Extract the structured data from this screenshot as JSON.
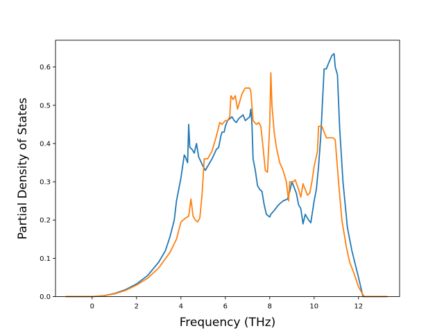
{
  "chart_data": {
    "type": "line",
    "title": "",
    "xlabel": "Frequency (THz)",
    "ylabel": "Partial Density of States",
    "xlim": [
      -1.65,
      13.85
    ],
    "ylim": [
      0.0,
      0.67
    ],
    "xticks": [
      0,
      2,
      4,
      6,
      8,
      10,
      12
    ],
    "xtick_labels": [
      "0",
      "2",
      "4",
      "6",
      "8",
      "10",
      "12"
    ],
    "yticks": [
      0.0,
      0.1,
      0.2,
      0.3,
      0.4,
      0.5,
      0.6
    ],
    "ytick_labels": [
      "0.0",
      "0.1",
      "0.2",
      "0.3",
      "0.4",
      "0.5",
      "0.6"
    ],
    "grid": false,
    "legend": "none",
    "series": [
      {
        "color": "#1f77b4",
        "points": [
          [
            -1.2,
            0.0
          ],
          [
            0.0,
            0.0
          ],
          [
            0.5,
            0.002
          ],
          [
            1.0,
            0.008
          ],
          [
            1.5,
            0.018
          ],
          [
            2.0,
            0.033
          ],
          [
            2.5,
            0.055
          ],
          [
            3.0,
            0.09
          ],
          [
            3.3,
            0.12
          ],
          [
            3.5,
            0.155
          ],
          [
            3.7,
            0.2
          ],
          [
            3.8,
            0.25
          ],
          [
            3.9,
            0.28
          ],
          [
            4.0,
            0.31
          ],
          [
            4.1,
            0.35
          ],
          [
            4.15,
            0.37
          ],
          [
            4.2,
            0.365
          ],
          [
            4.3,
            0.35
          ],
          [
            4.35,
            0.45
          ],
          [
            4.4,
            0.39
          ],
          [
            4.5,
            0.385
          ],
          [
            4.6,
            0.375
          ],
          [
            4.7,
            0.4
          ],
          [
            4.8,
            0.365
          ],
          [
            5.0,
            0.34
          ],
          [
            5.1,
            0.33
          ],
          [
            5.2,
            0.34
          ],
          [
            5.4,
            0.36
          ],
          [
            5.6,
            0.385
          ],
          [
            5.7,
            0.39
          ],
          [
            5.8,
            0.42
          ],
          [
            5.85,
            0.43
          ],
          [
            5.95,
            0.43
          ],
          [
            6.0,
            0.445
          ],
          [
            6.1,
            0.46
          ],
          [
            6.2,
            0.465
          ],
          [
            6.3,
            0.47
          ],
          [
            6.4,
            0.46
          ],
          [
            6.5,
            0.455
          ],
          [
            6.6,
            0.465
          ],
          [
            6.7,
            0.47
          ],
          [
            6.8,
            0.475
          ],
          [
            6.9,
            0.46
          ],
          [
            7.0,
            0.465
          ],
          [
            7.1,
            0.47
          ],
          [
            7.15,
            0.49
          ],
          [
            7.2,
            0.45
          ],
          [
            7.25,
            0.36
          ],
          [
            7.35,
            0.33
          ],
          [
            7.45,
            0.29
          ],
          [
            7.55,
            0.28
          ],
          [
            7.65,
            0.275
          ],
          [
            7.75,
            0.24
          ],
          [
            7.85,
            0.215
          ],
          [
            8.0,
            0.208
          ],
          [
            8.05,
            0.215
          ],
          [
            8.2,
            0.225
          ],
          [
            8.4,
            0.24
          ],
          [
            8.6,
            0.25
          ],
          [
            8.8,
            0.255
          ],
          [
            8.85,
            0.265
          ],
          [
            8.9,
            0.275
          ],
          [
            9.0,
            0.3
          ],
          [
            9.2,
            0.27
          ],
          [
            9.3,
            0.24
          ],
          [
            9.4,
            0.23
          ],
          [
            9.5,
            0.19
          ],
          [
            9.6,
            0.215
          ],
          [
            9.75,
            0.2
          ],
          [
            9.85,
            0.193
          ],
          [
            10.0,
            0.25
          ],
          [
            10.1,
            0.28
          ],
          [
            10.2,
            0.34
          ],
          [
            10.3,
            0.42
          ],
          [
            10.45,
            0.595
          ],
          [
            10.55,
            0.595
          ],
          [
            10.65,
            0.61
          ],
          [
            10.8,
            0.63
          ],
          [
            10.9,
            0.635
          ],
          [
            10.95,
            0.6
          ],
          [
            11.05,
            0.58
          ],
          [
            11.15,
            0.44
          ],
          [
            11.3,
            0.3
          ],
          [
            11.5,
            0.18
          ],
          [
            11.7,
            0.12
          ],
          [
            12.0,
            0.05
          ],
          [
            12.2,
            0.0
          ],
          [
            13.3,
            0.0
          ]
        ]
      },
      {
        "color": "#ff7f0e",
        "points": [
          [
            -1.2,
            0.0
          ],
          [
            0.0,
            0.0
          ],
          [
            0.5,
            0.002
          ],
          [
            1.0,
            0.007
          ],
          [
            1.5,
            0.016
          ],
          [
            2.0,
            0.03
          ],
          [
            2.5,
            0.048
          ],
          [
            3.0,
            0.075
          ],
          [
            3.5,
            0.115
          ],
          [
            3.8,
            0.15
          ],
          [
            4.0,
            0.195
          ],
          [
            4.2,
            0.205
          ],
          [
            4.35,
            0.21
          ],
          [
            4.45,
            0.255
          ],
          [
            4.55,
            0.21
          ],
          [
            4.65,
            0.2
          ],
          [
            4.75,
            0.195
          ],
          [
            4.85,
            0.205
          ],
          [
            4.95,
            0.265
          ],
          [
            5.05,
            0.36
          ],
          [
            5.2,
            0.36
          ],
          [
            5.4,
            0.38
          ],
          [
            5.6,
            0.42
          ],
          [
            5.75,
            0.455
          ],
          [
            5.85,
            0.45
          ],
          [
            6.0,
            0.46
          ],
          [
            6.1,
            0.46
          ],
          [
            6.2,
            0.47
          ],
          [
            6.25,
            0.525
          ],
          [
            6.35,
            0.515
          ],
          [
            6.45,
            0.525
          ],
          [
            6.55,
            0.49
          ],
          [
            6.65,
            0.51
          ],
          [
            6.75,
            0.53
          ],
          [
            6.9,
            0.545
          ],
          [
            7.0,
            0.545
          ],
          [
            7.1,
            0.545
          ],
          [
            7.15,
            0.535
          ],
          [
            7.25,
            0.46
          ],
          [
            7.4,
            0.45
          ],
          [
            7.5,
            0.455
          ],
          [
            7.6,
            0.445
          ],
          [
            7.7,
            0.39
          ],
          [
            7.8,
            0.33
          ],
          [
            7.9,
            0.325
          ],
          [
            8.0,
            0.45
          ],
          [
            8.05,
            0.585
          ],
          [
            8.1,
            0.5
          ],
          [
            8.2,
            0.43
          ],
          [
            8.3,
            0.39
          ],
          [
            8.45,
            0.35
          ],
          [
            8.6,
            0.33
          ],
          [
            8.75,
            0.3
          ],
          [
            8.85,
            0.25
          ],
          [
            8.9,
            0.3
          ],
          [
            9.05,
            0.3
          ],
          [
            9.15,
            0.305
          ],
          [
            9.3,
            0.28
          ],
          [
            9.4,
            0.26
          ],
          [
            9.5,
            0.295
          ],
          [
            9.6,
            0.28
          ],
          [
            9.7,
            0.265
          ],
          [
            9.8,
            0.27
          ],
          [
            9.9,
            0.3
          ],
          [
            10.0,
            0.34
          ],
          [
            10.15,
            0.38
          ],
          [
            10.2,
            0.445
          ],
          [
            10.35,
            0.445
          ],
          [
            10.45,
            0.43
          ],
          [
            10.55,
            0.415
          ],
          [
            10.65,
            0.415
          ],
          [
            10.85,
            0.415
          ],
          [
            10.95,
            0.41
          ],
          [
            11.1,
            0.3
          ],
          [
            11.25,
            0.2
          ],
          [
            11.45,
            0.13
          ],
          [
            11.6,
            0.09
          ],
          [
            11.8,
            0.06
          ],
          [
            12.0,
            0.025
          ],
          [
            12.25,
            0.0
          ],
          [
            13.3,
            0.0
          ]
        ]
      }
    ]
  }
}
